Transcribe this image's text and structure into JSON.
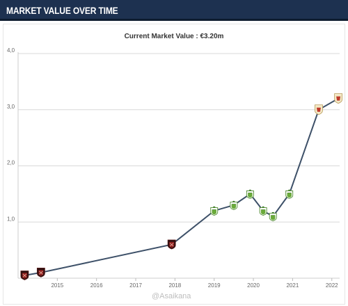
{
  "header": {
    "title": "MARKET VALUE OVER TIME"
  },
  "watermark": "@Asaikana",
  "colors": {
    "header_bg": "#1d3150",
    "line": "#3d5068",
    "grid": "#d8d8d8",
    "badge_dark_red": "#8f1d1d",
    "badge_green": "#6aaa3a",
    "badge_cream": "#f3e9c6"
  },
  "chart_data": {
    "type": "line",
    "title": "Current Market Value : €3.20m",
    "xlabel": "",
    "ylabel": "",
    "ylim": [
      0,
      4
    ],
    "y_ticks": [
      "1,0",
      "2,0",
      "3,0",
      "4,0"
    ],
    "x_ticks": [
      "2015",
      "2016",
      "2017",
      "2018",
      "2019",
      "2020",
      "2021",
      "2022"
    ],
    "grid": true,
    "series": [
      {
        "values": [
          {
            "x": "2014-03",
            "y": 0.05,
            "badge": "dark-red"
          },
          {
            "x": "2014-08",
            "y": 0.1,
            "badge": "dark-red"
          },
          {
            "x": "2017-12",
            "y": 0.6,
            "badge": "dark-red"
          },
          {
            "x": "2019-01",
            "y": 1.2,
            "badge": "green"
          },
          {
            "x": "2019-07",
            "y": 1.3,
            "badge": "green"
          },
          {
            "x": "2019-12",
            "y": 1.5,
            "badge": "green"
          },
          {
            "x": "2020-04",
            "y": 1.2,
            "badge": "green"
          },
          {
            "x": "2020-07",
            "y": 1.1,
            "badge": "green"
          },
          {
            "x": "2020-12",
            "y": 1.5,
            "badge": "green"
          },
          {
            "x": "2021-09",
            "y": 3.0,
            "badge": "cream"
          },
          {
            "x": "2022-03",
            "y": 3.2,
            "badge": "cream"
          }
        ]
      }
    ]
  }
}
